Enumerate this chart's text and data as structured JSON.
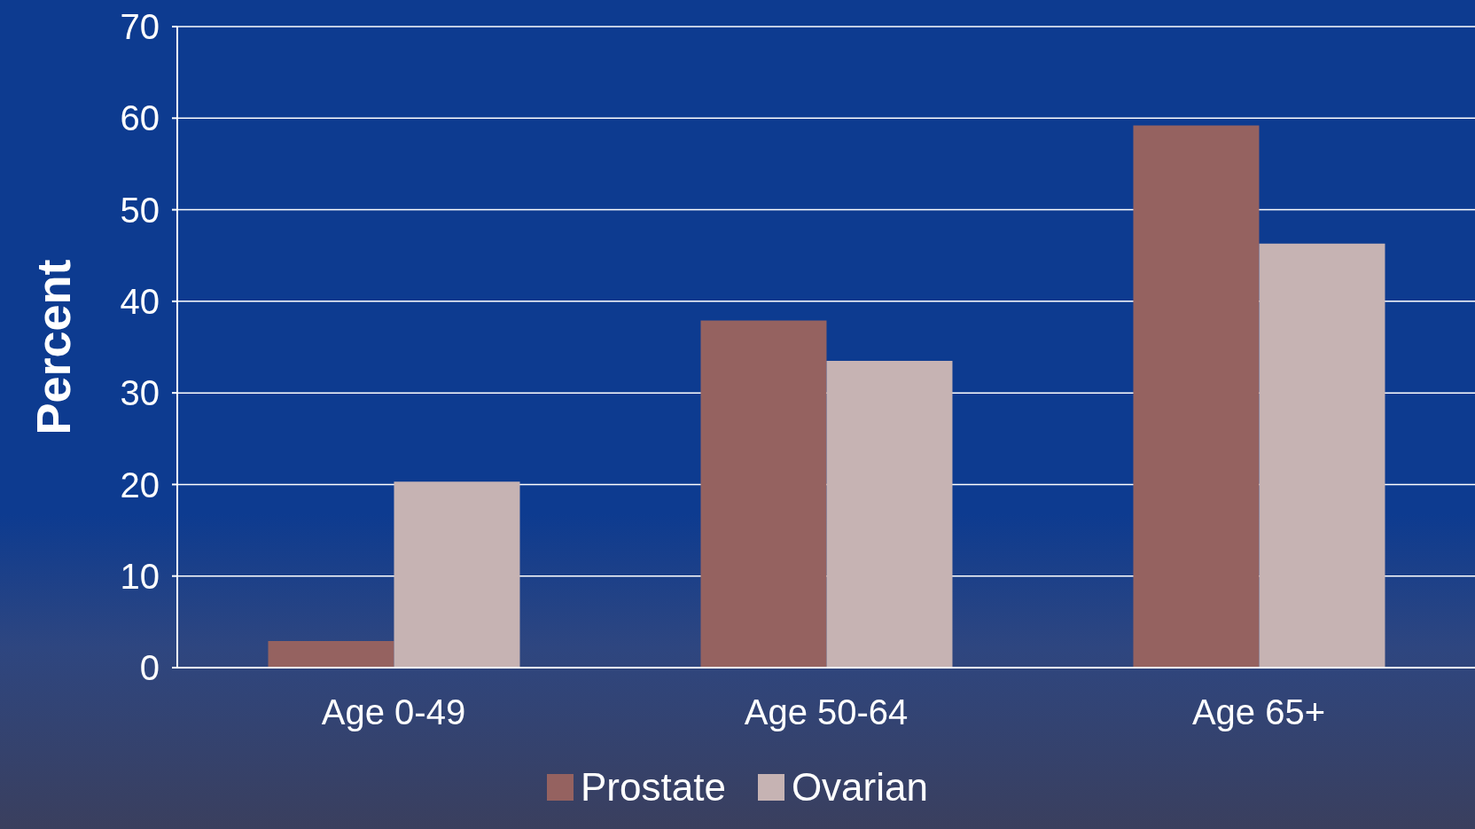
{
  "chart_data": {
    "type": "bar",
    "ylabel": "Percent",
    "categories": [
      "Age 0-49",
      "Age 50-64",
      "Age 65+"
    ],
    "series": [
      {
        "name": "Prostate",
        "color": "#956260",
        "values": [
          2.9,
          37.9,
          59.2
        ]
      },
      {
        "name": "Ovarian",
        "color": "#c6b3b3",
        "values": [
          20.3,
          33.5,
          46.3
        ]
      }
    ],
    "ylim": [
      0,
      70
    ],
    "yticks": [
      0,
      10,
      20,
      30,
      40,
      50,
      60,
      70
    ],
    "grid": "y",
    "legend": "bottom"
  }
}
